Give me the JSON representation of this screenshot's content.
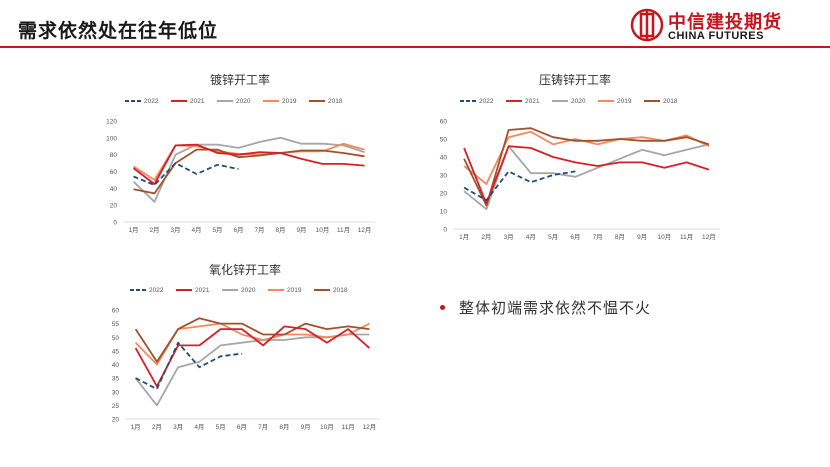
{
  "title": "需求依然处在往年低位",
  "logo": {
    "cn": "中信建投期货",
    "en": "CHINA FUTURES"
  },
  "bullet": "整体初端需求依然不愠不火",
  "colors": {
    "2022": "#1f4e79",
    "2021": "#d62028",
    "2020": "#a6a6a6",
    "2019": "#f4895f",
    "2018": "#a0522d",
    "accent": "#c4161c"
  },
  "chart_data": [
    {
      "type": "line",
      "title": "镀锌开工率",
      "categories": [
        "1月",
        "2月",
        "3月",
        "4月",
        "5月",
        "6月",
        "7月",
        "8月",
        "9月",
        "10月",
        "11月",
        "12月"
      ],
      "ylim": [
        0,
        120
      ],
      "yticks": [
        0,
        20,
        40,
        60,
        80,
        100,
        120
      ],
      "series": [
        {
          "name": "2022",
          "values": [
            54,
            44,
            70,
            57,
            68,
            63,
            null,
            null,
            null,
            null,
            null,
            null
          ]
        },
        {
          "name": "2021",
          "values": [
            64,
            45,
            91,
            92,
            82,
            80,
            83,
            82,
            75,
            69,
            69,
            67
          ]
        },
        {
          "name": "2020",
          "values": [
            48,
            24,
            80,
            92,
            92,
            88,
            95,
            100,
            93,
            93,
            91,
            83
          ]
        },
        {
          "name": "2019",
          "values": [
            66,
            50,
            91,
            90,
            84,
            81,
            80,
            82,
            84,
            84,
            93,
            86
          ]
        },
        {
          "name": "2018",
          "values": [
            39,
            34,
            70,
            86,
            86,
            77,
            79,
            82,
            85,
            85,
            82,
            78
          ]
        }
      ]
    },
    {
      "type": "line",
      "title": "压铸锌开工率",
      "categories": [
        "1月",
        "2月",
        "3月",
        "4月",
        "5月",
        "6月",
        "7月",
        "8月",
        "9月",
        "10月",
        "11月",
        "12月"
      ],
      "ylim": [
        0,
        60
      ],
      "yticks": [
        0,
        10,
        20,
        30,
        40,
        50,
        60
      ],
      "series": [
        {
          "name": "2022",
          "values": [
            23,
            16,
            32,
            26,
            30,
            32,
            null,
            null,
            null,
            null,
            null,
            null
          ]
        },
        {
          "name": "2021",
          "values": [
            45,
            14,
            46,
            45,
            40,
            37,
            35,
            37,
            37,
            34,
            37,
            33
          ]
        },
        {
          "name": "2020",
          "values": [
            21,
            11,
            46,
            31,
            31,
            29,
            34,
            39,
            44,
            41,
            44,
            47
          ]
        },
        {
          "name": "2019",
          "values": [
            35,
            25,
            51,
            54,
            47,
            50,
            47,
            50,
            51,
            49,
            52,
            46
          ]
        },
        {
          "name": "2018",
          "values": [
            39,
            13,
            55,
            56,
            51,
            49,
            49,
            50,
            49,
            49,
            51,
            47
          ]
        }
      ]
    },
    {
      "type": "line",
      "title": "氧化锌开工率",
      "categories": [
        "1月",
        "2月",
        "3月",
        "4月",
        "5月",
        "6月",
        "7月",
        "8月",
        "9月",
        "10月",
        "11月",
        "12月"
      ],
      "ylim": [
        20,
        60
      ],
      "yticks": [
        20,
        25,
        30,
        35,
        40,
        45,
        50,
        55,
        60
      ],
      "series": [
        {
          "name": "2022",
          "values": [
            35,
            31,
            48,
            39,
            43,
            44,
            null,
            null,
            null,
            null,
            null,
            null
          ]
        },
        {
          "name": "2021",
          "values": [
            46,
            32,
            47,
            47,
            53,
            53,
            47,
            54,
            53,
            48,
            53,
            46
          ]
        },
        {
          "name": "2020",
          "values": [
            35,
            25,
            39,
            41,
            47,
            48,
            49,
            49,
            50,
            50,
            51,
            51
          ]
        },
        {
          "name": "2019",
          "values": [
            48,
            40,
            53,
            54,
            55,
            51,
            49,
            51,
            51,
            50,
            51,
            55
          ]
        },
        {
          "name": "2018",
          "values": [
            53,
            41,
            53,
            57,
            55,
            55,
            51,
            51,
            55,
            53,
            54,
            53
          ]
        }
      ]
    }
  ]
}
